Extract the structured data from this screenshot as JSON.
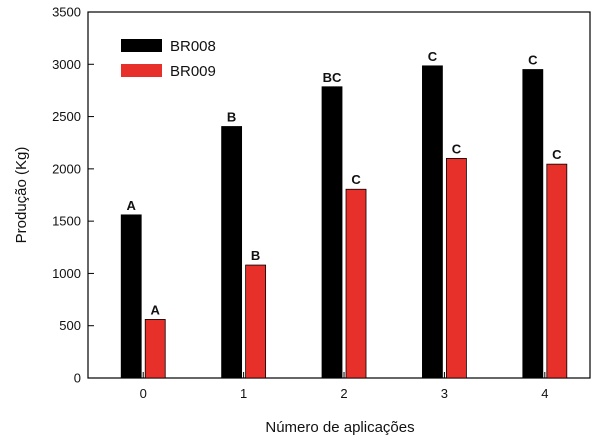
{
  "chart_data": {
    "type": "bar",
    "title": "",
    "xlabel": "Número de aplicações",
    "ylabel": "Produção (Kg)",
    "categories": [
      "0",
      "1",
      "2",
      "3",
      "4"
    ],
    "ylim": [
      0,
      3500
    ],
    "yticks": [
      0,
      500,
      1000,
      1500,
      2000,
      2500,
      3000,
      3500
    ],
    "grid": false,
    "legend_position": "top-left",
    "series": [
      {
        "name": "BR008",
        "color": "#000000",
        "values": [
          1560,
          2405,
          2785,
          2985,
          2950
        ],
        "labels": [
          "A",
          "B",
          "BC",
          "C",
          "C"
        ]
      },
      {
        "name": "BR009",
        "color": "#e8302b",
        "values": [
          560,
          1080,
          1805,
          2100,
          2045
        ],
        "labels": [
          "A",
          "B",
          "C",
          "C",
          "C"
        ]
      }
    ]
  }
}
